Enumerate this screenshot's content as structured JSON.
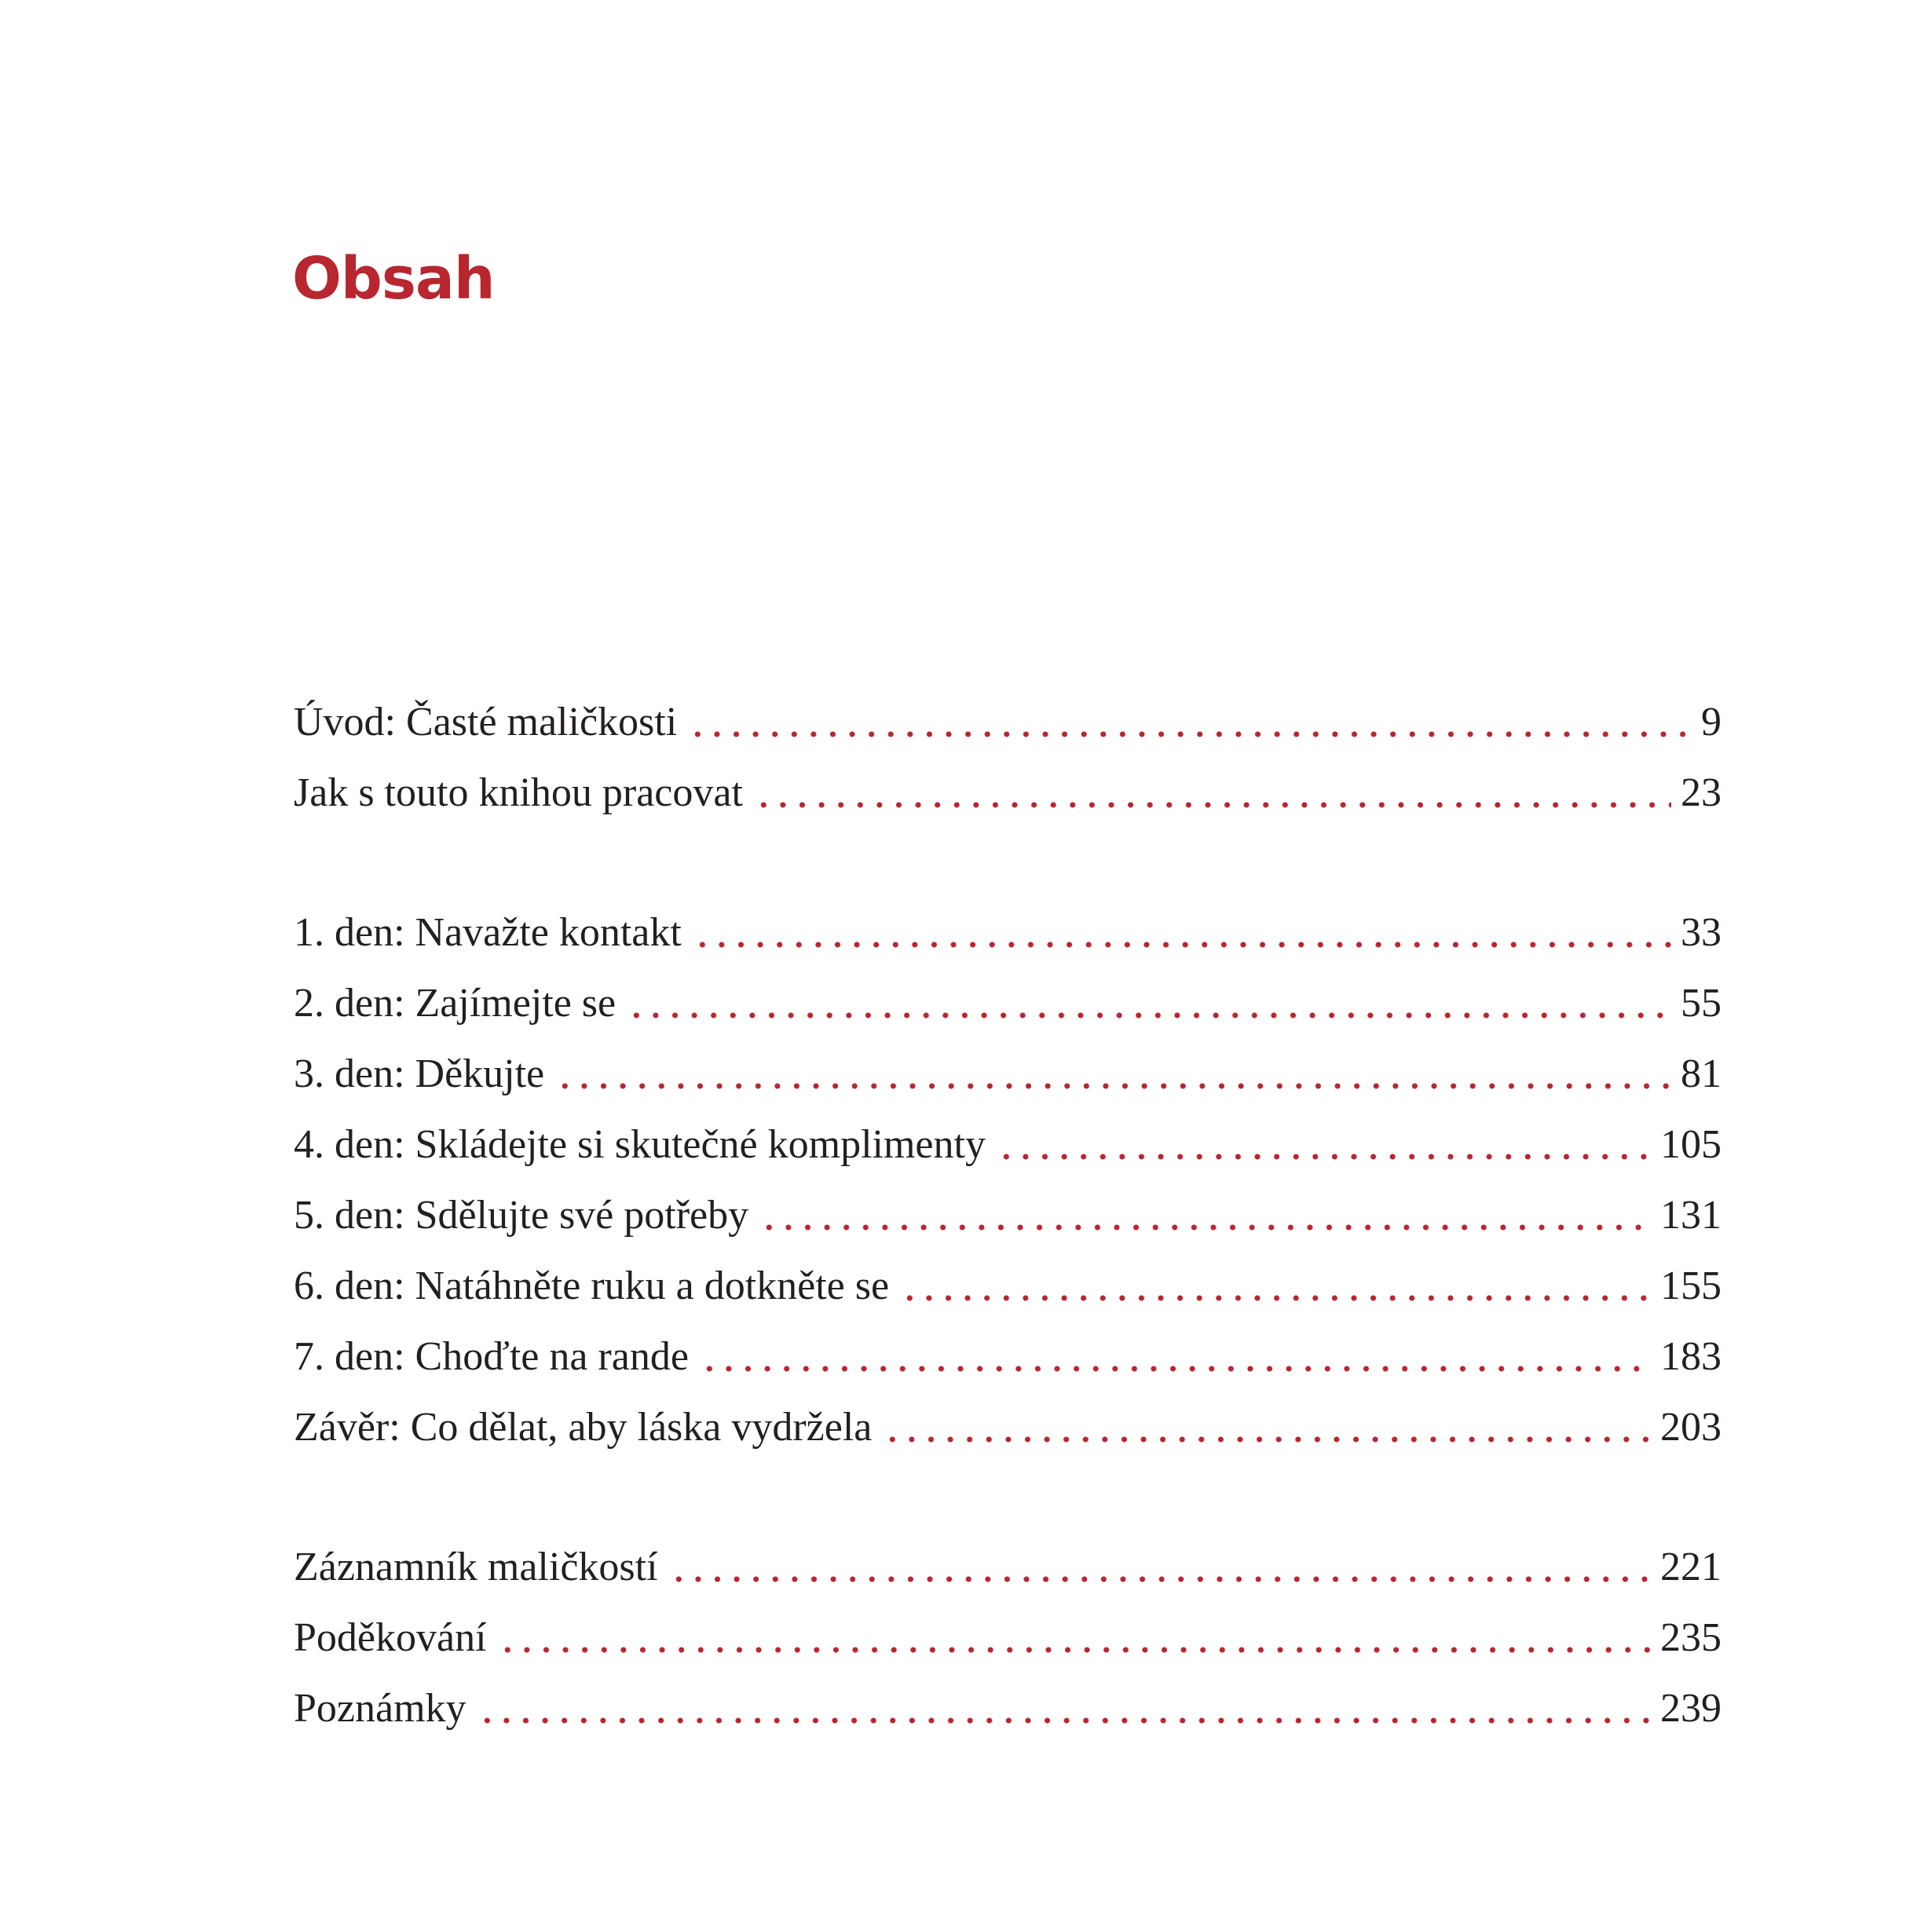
{
  "title": "Obsah",
  "colors": {
    "accent": "#b8262f",
    "text": "#231f20"
  },
  "groups": [
    [
      {
        "label": "Úvod: Časté maličkosti",
        "page": "9"
      },
      {
        "label": "Jak s touto knihou pracovat",
        "page": "23"
      }
    ],
    [
      {
        "label": "1. den: Navažte kontakt",
        "page": "33"
      },
      {
        "label": "2. den: Zajímejte se",
        "page": "55"
      },
      {
        "label": "3. den: Děkujte",
        "page": "81"
      },
      {
        "label": "4. den: Skládejte si skutečné komplimenty",
        "page": "105"
      },
      {
        "label": "5. den: Sdělujte své potřeby",
        "page": "131"
      },
      {
        "label": "6. den: Natáhněte ruku a dotkněte se",
        "page": "155"
      },
      {
        "label": "7. den: Choďte na rande",
        "page": "183"
      },
      {
        "label": "Závěr: Co dělat, aby láska vydržela",
        "page": "203"
      }
    ],
    [
      {
        "label": "Záznamník maličkostí",
        "page": "221"
      },
      {
        "label": "Poděkování",
        "page": "235"
      },
      {
        "label": "Poznámky",
        "page": "239"
      }
    ]
  ]
}
